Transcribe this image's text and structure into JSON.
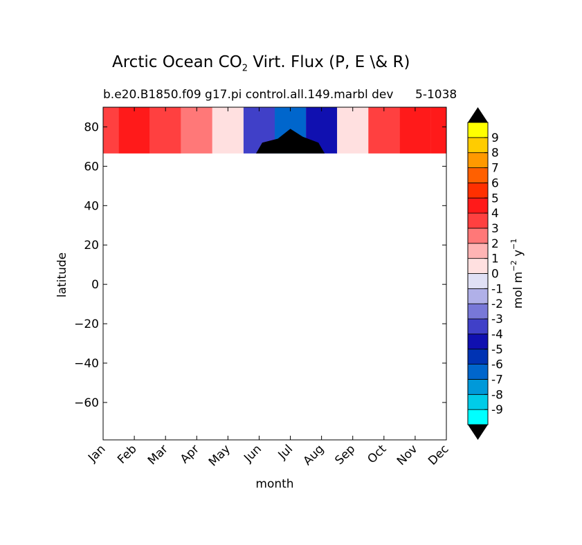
{
  "chart_data": {
    "type": "heatmap",
    "title": {
      "prefix": "Arctic Ocean CO",
      "subscript": "2",
      "suffix": " Virt. Flux (P, E \\& R)"
    },
    "subtitle": "b.e20.B1850.f09 g17.pi control.all.149.marbl dev",
    "subtitle_right": "5-1038",
    "xlabel": "month",
    "ylabel": "latitude",
    "x_categories": [
      "Jan",
      "Feb",
      "Mar",
      "Apr",
      "May",
      "Jun",
      "Jul",
      "Aug",
      "Sep",
      "Oct",
      "Nov",
      "Dec"
    ],
    "y_ticks": [
      80,
      60,
      40,
      20,
      0,
      -20,
      -40,
      -60
    ],
    "y_tick_labels": [
      "80",
      "60",
      "40",
      "20",
      "0",
      "−20",
      "−40",
      "−60"
    ],
    "ylim": [
      -79,
      90
    ],
    "data_lat_range": [
      66.5,
      90
    ],
    "colorbar": {
      "label_base": "mol m",
      "label_exp1": "−2",
      "label_mid": " y",
      "label_exp2": "−1",
      "levels": [
        -9,
        -8,
        -7,
        -6,
        -5,
        -4,
        -3,
        -2,
        -1,
        0,
        1,
        2,
        3,
        4,
        5,
        6,
        7,
        8,
        9
      ],
      "tick_labels": [
        "-9",
        "-8",
        "-7",
        "-6",
        "-5",
        "-4",
        "-3",
        "-2",
        "-1",
        "0",
        "1",
        "2",
        "3",
        "4",
        "5",
        "6",
        "7",
        "8",
        "9"
      ],
      "colors": [
        "#00ffff",
        "#00cce8",
        "#0099d9",
        "#0066cc",
        "#0033b3",
        "#1010b0",
        "#4040c8",
        "#7878d8",
        "#b0b0e8",
        "#e0e0f5",
        "#ffe0e0",
        "#ffb4b4",
        "#ff7878",
        "#ff4040",
        "#ff1a1a",
        "#ff3000",
        "#ff6000",
        "#ff9900",
        "#ffcc00",
        "#ffff00"
      ],
      "extend_color": "#000000"
    },
    "monthly_flux_band": [
      3,
      4,
      3,
      2,
      0,
      -4,
      -7,
      -5,
      0,
      3,
      4,
      4
    ],
    "grid": false
  }
}
